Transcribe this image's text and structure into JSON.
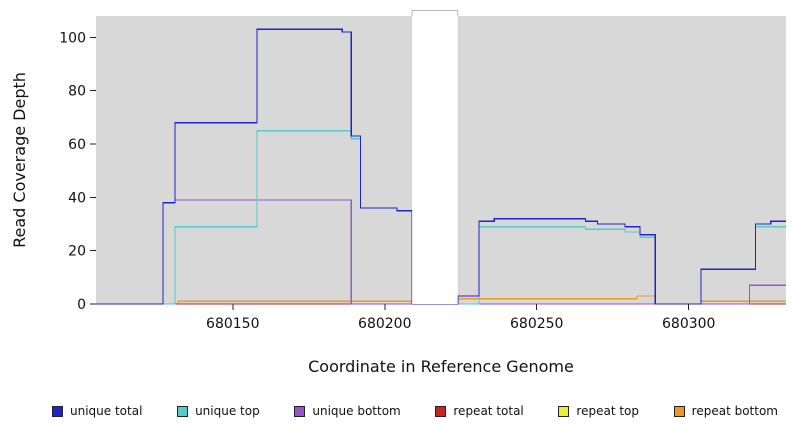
{
  "chart_data": {
    "type": "line",
    "subtype": "step-coverage-plot",
    "title": "",
    "xlabel": "Coordinate in Reference Genome",
    "ylabel": "Read Coverage Depth",
    "xlim": [
      680105,
      680332
    ],
    "ylim": [
      0,
      108
    ],
    "x_ticks": [
      "680150",
      "680200",
      "680250",
      "680300"
    ],
    "y_ticks": [
      "0",
      "20",
      "40",
      "60",
      "80",
      "100"
    ],
    "x_tick_values": [
      680150,
      680200,
      680250,
      680300
    ],
    "y_tick_values": [
      0,
      20,
      40,
      60,
      80,
      100
    ],
    "plot_bg": "#d8d8d8",
    "page_bg": "#ffffff",
    "grid": false,
    "legend_position": "bottom",
    "masked_region": {
      "x0": 680209,
      "x1": 680224
    },
    "series": [
      {
        "name": "unique total",
        "color": "#2222cc",
        "points": [
          [
            680105,
            0
          ],
          [
            680127,
            0
          ],
          [
            680127,
            38
          ],
          [
            680131,
            38
          ],
          [
            680131,
            68
          ],
          [
            680158,
            68
          ],
          [
            680158,
            103
          ],
          [
            680186,
            103
          ],
          [
            680186,
            102
          ],
          [
            680189,
            102
          ],
          [
            680189,
            63
          ],
          [
            680192,
            63
          ],
          [
            680192,
            36
          ],
          [
            680204,
            36
          ],
          [
            680204,
            35
          ],
          [
            680209,
            35
          ],
          [
            680209,
            0
          ],
          [
            680224,
            0
          ],
          [
            680224,
            3
          ],
          [
            680231,
            3
          ],
          [
            680231,
            31
          ],
          [
            680236,
            31
          ],
          [
            680236,
            32
          ],
          [
            680266,
            32
          ],
          [
            680266,
            31
          ],
          [
            680270,
            31
          ],
          [
            680270,
            30
          ],
          [
            680279,
            30
          ],
          [
            680279,
            29
          ],
          [
            680284,
            29
          ],
          [
            680284,
            26
          ],
          [
            680289,
            26
          ],
          [
            680289,
            0
          ],
          [
            680304,
            0
          ],
          [
            680304,
            13
          ],
          [
            680322,
            13
          ],
          [
            680322,
            30
          ],
          [
            680327,
            30
          ],
          [
            680327,
            31
          ],
          [
            680332,
            31
          ]
        ]
      },
      {
        "name": "unique top",
        "color": "#55cccc",
        "points": [
          [
            680105,
            0
          ],
          [
            680131,
            0
          ],
          [
            680131,
            29
          ],
          [
            680158,
            29
          ],
          [
            680158,
            65
          ],
          [
            680189,
            65
          ],
          [
            680189,
            62
          ],
          [
            680192,
            62
          ],
          [
            680192,
            36
          ],
          [
            680204,
            36
          ],
          [
            680204,
            35
          ],
          [
            680209,
            35
          ],
          [
            680209,
            0
          ],
          [
            680231,
            0
          ],
          [
            680231,
            29
          ],
          [
            680266,
            29
          ],
          [
            680266,
            28
          ],
          [
            680279,
            28
          ],
          [
            680279,
            27
          ],
          [
            680284,
            27
          ],
          [
            680284,
            25
          ],
          [
            680289,
            25
          ],
          [
            680289,
            0
          ],
          [
            680304,
            0
          ],
          [
            680304,
            13
          ],
          [
            680322,
            13
          ],
          [
            680322,
            29
          ],
          [
            680332,
            29
          ]
        ]
      },
      {
        "name": "unique bottom",
        "color": "#9955cc",
        "points": [
          [
            680105,
            0
          ],
          [
            680127,
            0
          ],
          [
            680127,
            38
          ],
          [
            680131,
            38
          ],
          [
            680131,
            39
          ],
          [
            680189,
            39
          ],
          [
            680189,
            0
          ],
          [
            680320,
            0
          ],
          [
            680320,
            7
          ],
          [
            680332,
            7
          ]
        ]
      },
      {
        "name": "repeat total",
        "color": "#cc2222",
        "points": [
          [
            680105,
            0
          ],
          [
            680332,
            0
          ]
        ]
      },
      {
        "name": "repeat top",
        "color": "#eeee33",
        "points": [
          [
            680105,
            0
          ],
          [
            680332,
            0
          ]
        ]
      },
      {
        "name": "repeat bottom",
        "color": "#ee9922",
        "points": [
          [
            680105,
            0
          ],
          [
            680132,
            0
          ],
          [
            680132,
            1
          ],
          [
            680209,
            1
          ],
          [
            680209,
            0
          ],
          [
            680224,
            0
          ],
          [
            680224,
            2
          ],
          [
            680283,
            2
          ],
          [
            680283,
            3
          ],
          [
            680289,
            3
          ],
          [
            680289,
            0
          ],
          [
            680304,
            0
          ],
          [
            680304,
            1
          ],
          [
            680332,
            1
          ]
        ]
      }
    ]
  }
}
